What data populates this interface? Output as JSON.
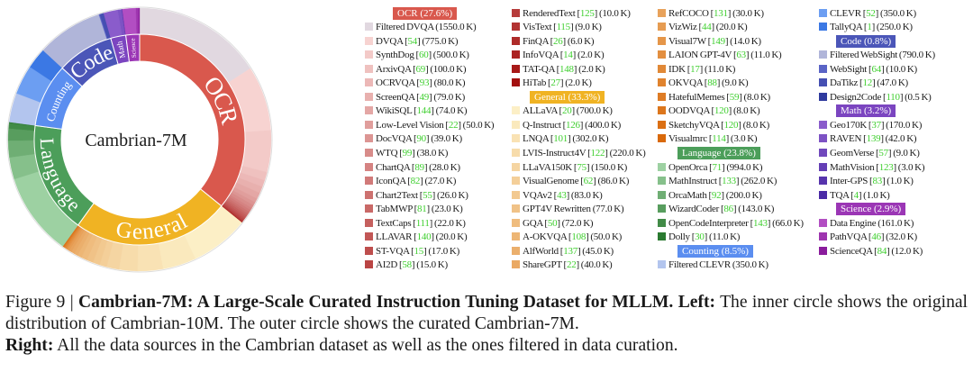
{
  "chart_data": {
    "type": "pie",
    "subtype": "sunburst",
    "center_label": "Cambrian-7M",
    "unit": "K",
    "categories": [
      {
        "name": "OCR",
        "label": "OCR (27.6%)",
        "percent": 27.6,
        "color": "#d9584d",
        "ramp": [
          "#f7d3d1",
          "#a3100f"
        ],
        "items": [
          {
            "name": "Filtered DVQA",
            "value": 1550.0,
            "color": "#e1d8e0"
          },
          {
            "name": "DVQA",
            "ref": "54",
            "value": 775.0
          },
          {
            "name": "SynthDog",
            "ref": "60",
            "value": 500.0
          },
          {
            "name": "ArxivQA",
            "ref": "69",
            "value": 100.0
          },
          {
            "name": "OCRVQA",
            "ref": "93",
            "value": 80.0
          },
          {
            "name": "ScreenQA",
            "ref": "49",
            "value": 79.0
          },
          {
            "name": "WikiSQL",
            "ref": "144",
            "value": 74.0
          },
          {
            "name": "Low-Level Vision",
            "ref": "22",
            "value": 50.0
          },
          {
            "name": "DocVQA",
            "ref": "90",
            "value": 39.0
          },
          {
            "name": "WTQ",
            "ref": "99",
            "value": 38.0
          },
          {
            "name": "ChartQA",
            "ref": "89",
            "value": 28.0
          },
          {
            "name": "IconQA",
            "ref": "82",
            "value": 27.0
          },
          {
            "name": "Chart2Text",
            "ref": "55",
            "value": 26.0
          },
          {
            "name": "TabMWP",
            "ref": "81",
            "value": 23.0
          },
          {
            "name": "TextCaps",
            "ref": "111",
            "value": 22.0
          },
          {
            "name": "LLAVAR",
            "ref": "140",
            "value": 20.0
          },
          {
            "name": "ST-VQA",
            "ref": "15",
            "value": 17.0
          },
          {
            "name": "AI2D",
            "ref": "58",
            "value": 15.0
          },
          {
            "name": "RenderedText",
            "ref": "125",
            "value": 10.0
          },
          {
            "name": "VisText",
            "ref": "115",
            "value": 9.0
          },
          {
            "name": "FinQA",
            "ref": "26",
            "value": 6.0
          },
          {
            "name": "InfoVQA",
            "ref": "14",
            "value": 2.0
          },
          {
            "name": "TAT-QA",
            "ref": "148",
            "value": 2.0
          },
          {
            "name": "HiTab",
            "ref": "27",
            "value": 2.0
          }
        ]
      },
      {
        "name": "General",
        "label": "General (33.3%)",
        "percent": 33.3,
        "color": "#f0b323",
        "ramp": [
          "#fcefc6",
          "#d9690a"
        ],
        "items": [
          {
            "name": "ALLaVA",
            "ref": "20",
            "value": 700.0
          },
          {
            "name": "Q-Instruct",
            "ref": "126",
            "value": 400.0
          },
          {
            "name": "LNQA",
            "ref": "101",
            "value": 302.0
          },
          {
            "name": "LVIS-Instruct4V",
            "ref": "122",
            "value": 220.0
          },
          {
            "name": "LLaVA150K",
            "ref": "75",
            "value": 150.0
          },
          {
            "name": "VisualGenome",
            "ref": "62",
            "value": 86.0
          },
          {
            "name": "VQAv2",
            "ref": "43",
            "value": 83.0
          },
          {
            "name": "GPT4V Rewritten",
            "value": 77.0
          },
          {
            "name": "GQA",
            "ref": "50",
            "value": 72.0
          },
          {
            "name": "A-OKVQA",
            "ref": "108",
            "value": 50.0
          },
          {
            "name": "AlfWorld",
            "ref": "137",
            "value": 45.0
          },
          {
            "name": "ShareGPT",
            "ref": "22",
            "value": 40.0
          },
          {
            "name": "RefCOCO",
            "ref": "131",
            "value": 30.0
          },
          {
            "name": "VizWiz",
            "ref": "44",
            "value": 20.0
          },
          {
            "name": "Visual7W",
            "ref": "149",
            "value": 14.0
          },
          {
            "name": "LAION GPT-4V",
            "ref": "63",
            "value": 11.0
          },
          {
            "name": "IDK",
            "ref": "17",
            "value": 11.0
          },
          {
            "name": "OKVQA",
            "ref": "88",
            "value": 9.0
          },
          {
            "name": "HatefulMemes",
            "ref": "59",
            "value": 8.0
          },
          {
            "name": "OODVQA",
            "ref": "120",
            "value": 8.0
          },
          {
            "name": "SketchyVQA",
            "ref": "120",
            "value": 8.0
          },
          {
            "name": "Visualmrc",
            "ref": "114",
            "value": 3.0
          }
        ]
      },
      {
        "name": "Language",
        "label": "Language (23.8%)",
        "percent": 23.8,
        "color": "#4c9e5a",
        "ramp": [
          "#9dd1a2",
          "#2a7a30"
        ],
        "items": [
          {
            "name": "OpenOrca",
            "ref": "71",
            "value": 994.0
          },
          {
            "name": "MathInstruct",
            "ref": "133",
            "value": 262.0
          },
          {
            "name": "OrcaMath",
            "ref": "92",
            "value": 200.0
          },
          {
            "name": "WizardCoder",
            "ref": "86",
            "value": 143.0
          },
          {
            "name": "OpenCodeInterpreter",
            "ref": "143",
            "value": 66.0
          },
          {
            "name": "Dolly",
            "ref": "30",
            "value": 11.0
          }
        ]
      },
      {
        "name": "Counting",
        "label": "Counting (8.5%)",
        "percent": 8.5,
        "color": "#5b8ef0",
        "ramp": [
          "#6c9ef2",
          "#3b78e4"
        ],
        "items": [
          {
            "name": "Filtered CLEVR",
            "value": 350.0,
            "color": "#b3c5ee"
          },
          {
            "name": "CLEVR",
            "ref": "52",
            "value": 350.0
          },
          {
            "name": "TallyQA",
            "ref": "1",
            "value": 250.0
          }
        ]
      },
      {
        "name": "Code",
        "label": "Code (0.8%)",
        "percent": 0.8,
        "color": "#4b56b8",
        "ramp": [
          "#5a64c6",
          "#2f3a9e"
        ],
        "items": [
          {
            "name": "Filtered WebSight",
            "value": 790.0,
            "color": "#b0b5d9"
          },
          {
            "name": "WebSight",
            "ref": "64",
            "value": 10.0
          },
          {
            "name": "DaTikz",
            "ref": "12",
            "value": 47.0
          },
          {
            "name": "Design2Code",
            "ref": "110",
            "value": 0.5
          }
        ]
      },
      {
        "name": "Math",
        "label": "Math (3.2%)",
        "percent": 3.2,
        "color": "#7b45c0",
        "ramp": [
          "#8a5ccb",
          "#4a2aa6"
        ],
        "items": [
          {
            "name": "Geo170K",
            "ref": "37",
            "value": 170.0
          },
          {
            "name": "RAVEN",
            "ref": "139",
            "value": 42.0
          },
          {
            "name": "GeomVerse",
            "ref": "57",
            "value": 9.0
          },
          {
            "name": "MathVision",
            "ref": "123",
            "value": 3.0
          },
          {
            "name": "Inter-GPS",
            "ref": "83",
            "value": 1.0
          },
          {
            "name": "TQA",
            "ref": "4",
            "value": 1.0
          }
        ]
      },
      {
        "name": "Science",
        "label": "Science (2.9%)",
        "percent": 2.9,
        "color": "#9b36b5",
        "ramp": [
          "#b24ec2",
          "#8a1c9c"
        ],
        "items": [
          {
            "name": "Data Engine",
            "value": 161.0
          },
          {
            "name": "PathVQA",
            "ref": "46",
            "value": 32.0
          },
          {
            "name": "ScienceQA",
            "ref": "84",
            "value": 12.0
          }
        ]
      }
    ],
    "ref_color": "#3fcf2f"
  },
  "caption": {
    "figure_label": "Figure 9 |",
    "title": "Cambrian-7M: A Large-Scale Curated Instruction Tuning Dataset for MLLM.",
    "left_label": "Left:",
    "left_text": "The inner circle shows the original distribution of Cambrian-10M. The outer circle shows the curated Cambrian-7M.",
    "right_label": "Right:",
    "right_text": "All the data sources in the Cambrian dataset as well as the ones filtered in data curation."
  }
}
